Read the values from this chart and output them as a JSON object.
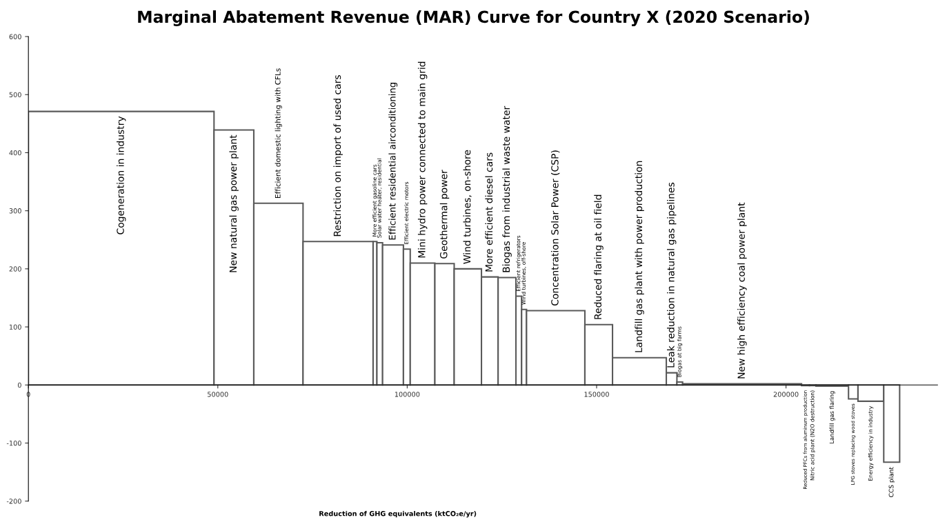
{
  "chart_data": {
    "type": "histogram",
    "title": "Marginal Abatement Revenue (MAR) Curve for Country X (2020 Scenario)",
    "xlabel": "Reduction of GHG equivalents (ktCO₂e/yr)",
    "bins": [
      0,
      49000,
      59500,
      72500,
      91000,
      92000,
      93500,
      99000,
      100800,
      107300,
      112400,
      119600,
      124000,
      128700,
      130200,
      131500,
      146900,
      154200,
      168400,
      171200,
      172700,
      204100,
      206200,
      207900,
      216500,
      219000,
      225800,
      230000
    ],
    "values": [
      471,
      439,
      313,
      247,
      247,
      245,
      241,
      234,
      210,
      209,
      200,
      186,
      185,
      153,
      130,
      128,
      104,
      47,
      21,
      5,
      2,
      -1,
      -1,
      -2,
      -24,
      -28,
      -133
    ],
    "color": "#595959",
    "xlim": [
      0,
      240000
    ],
    "xticks": [
      0,
      50000,
      100000,
      150000,
      200000
    ],
    "ylim": [
      -200,
      600
    ],
    "yticks": [
      -200,
      -100,
      0,
      100,
      200,
      300,
      400,
      500,
      600
    ],
    "grid": false,
    "legend": false,
    "annotations": [
      {
        "text": "Cogeneration in industry",
        "x": 24500,
        "y": 471
      },
      {
        "text": "New natural gas power plant",
        "x": 54250,
        "y": 439
      },
      {
        "text": "Efficient domestic lighting with CFLs",
        "x": 66000,
        "y": 313
      },
      {
        "text": "Restriction on import of used cars",
        "x": 81750,
        "y": 247
      },
      {
        "text": "More efficient gasoline cars",
        "x": 91500,
        "y": 247
      },
      {
        "text": "Solar water heater, residential",
        "x": 92750,
        "y": 245
      },
      {
        "text": "Efficient residential airconditioning",
        "x": 96250,
        "y": 241
      },
      {
        "text": "Efficient electric motors",
        "x": 99900,
        "y": 234
      },
      {
        "text": "Mini hydro power connected to main grid",
        "x": 104050,
        "y": 210
      },
      {
        "text": "Geothermal power",
        "x": 109850,
        "y": 209
      },
      {
        "text": "Wind turbines, on-shore",
        "x": 116000,
        "y": 200
      },
      {
        "text": "More efficient diesel cars",
        "x": 121800,
        "y": 186
      },
      {
        "text": "Biogas from industrial waste water",
        "x": 126350,
        "y": 185
      },
      {
        "text": "Efficient refrigerators",
        "x": 129450,
        "y": 153
      },
      {
        "text": "Wind turbines, off-shore",
        "x": 130850,
        "y": 130
      },
      {
        "text": "Concentration Solar Power (CSP)",
        "x": 139200,
        "y": 128
      },
      {
        "text": "Reduced flaring at oil field",
        "x": 150550,
        "y": 104
      },
      {
        "text": "Landfill gas plant with power production",
        "x": 161300,
        "y": 47
      },
      {
        "text": "Leak reduction in natural gas pipelines",
        "x": 169800,
        "y": 21
      },
      {
        "text": "Biogas at big farms",
        "x": 171950,
        "y": 5
      },
      {
        "text": "New high efficiency coal power plant",
        "x": 188400,
        "y": 2
      },
      {
        "text": "Reduced PFCs from aluminum production",
        "x": 205150,
        "y": -1
      },
      {
        "text": "Nitric acid plant (N2O destruction)",
        "x": 207050,
        "y": -1
      },
      {
        "text": "Landfill gas flaring",
        "x": 212200,
        "y": -2
      },
      {
        "text": "LPG stoves replacing wood stoves",
        "x": 217750,
        "y": -24
      },
      {
        "text": "Energy efficiency in industry",
        "x": 222400,
        "y": -28
      },
      {
        "text": "CCS plant",
        "x": 227900,
        "y": -133
      }
    ]
  }
}
